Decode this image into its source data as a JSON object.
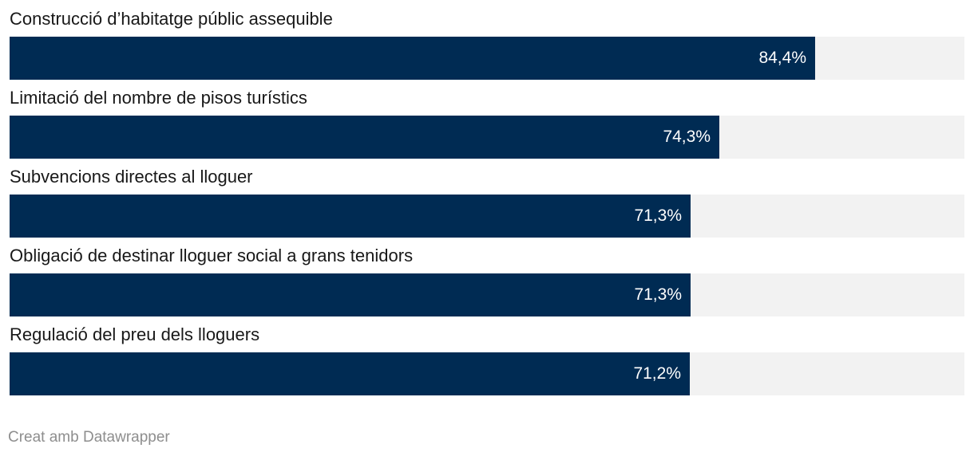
{
  "chart_data": {
    "type": "bar",
    "orientation": "horizontal",
    "categories": [
      "Construcció d’habitatge públic assequible",
      "Limitació del nombre de pisos turístics",
      "Subvencions directes al lloguer",
      "Obligació de destinar lloguer social a grans tenidors",
      "Regulació del preu dels lloguers"
    ],
    "values": [
      84.4,
      74.3,
      71.3,
      71.3,
      71.2
    ],
    "value_labels": [
      "84,4%",
      "74,3%",
      "71,3%",
      "71,3%",
      "71,2%"
    ],
    "xlim": [
      0,
      100
    ],
    "grid": false,
    "legend": "none",
    "colors": {
      "bar": "#002b53",
      "track": "#f2f2f2",
      "value_label": "#ffffff"
    }
  },
  "footer": {
    "credit": "Creat amb Datawrapper"
  }
}
